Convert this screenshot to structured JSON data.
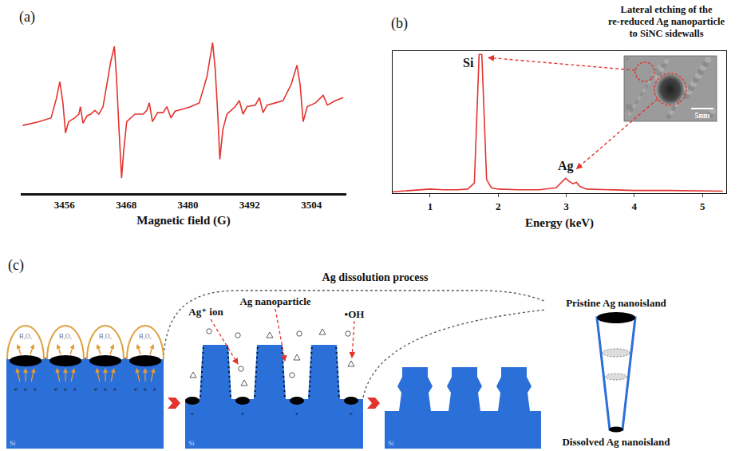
{
  "chart_data": [
    {
      "type": "line",
      "panel": "(a)",
      "color": "#e3342f",
      "grid": false,
      "tick_labels": "x",
      "x_label": "Magnetic field (G)",
      "x": [
        3447.9,
        3451.0,
        3453.4,
        3454.4,
        3455.1,
        3455.7,
        3456.2,
        3456.8,
        3458.0,
        3458.8,
        3459.1,
        3459.6,
        3460.4,
        3461.1,
        3461.9,
        3462.7,
        3463.5,
        3465.0,
        3465.7,
        3466.1,
        3466.6,
        3467.1,
        3467.5,
        3468.1,
        3469.7,
        3471.3,
        3472.0,
        3472.5,
        3473.1,
        3474.1,
        3475.2,
        3475.9,
        3476.7,
        3477.5,
        3479.1,
        3480.6,
        3482.2,
        3483.7,
        3484.8,
        3485.3,
        3485.8,
        3486.2,
        3486.8,
        3487.6,
        3489.2,
        3490.0,
        3490.7,
        3491.5,
        3493.1,
        3493.9,
        3494.6,
        3495.4,
        3497.0,
        3498.5,
        3500.1,
        3501.2,
        3501.8,
        3502.4,
        3503.2,
        3504.8,
        3506.3,
        3507.1,
        3508.7,
        3510.2
      ],
      "values": [
        90,
        95,
        100,
        125,
        148,
        120,
        80,
        95,
        100,
        105,
        115,
        93,
        103,
        105,
        110,
        105,
        115,
        175,
        195,
        155,
        85,
        20,
        55,
        95,
        105,
        105,
        110,
        120,
        95,
        107,
        107,
        115,
        100,
        109,
        112,
        115,
        120,
        155,
        200,
        165,
        105,
        45,
        85,
        105,
        115,
        123,
        105,
        115,
        117,
        127,
        107,
        117,
        120,
        123,
        145,
        170,
        145,
        95,
        115,
        120,
        130,
        117,
        123,
        127
      ],
      "xlim": [
        3447.5,
        3510.8
      ],
      "xticks": [
        3456,
        3468,
        3480,
        3492,
        3504
      ],
      "ylim": [
        0,
        210
      ]
    },
    {
      "type": "line",
      "panel": "(b)",
      "color": "#e3342f",
      "grid": false,
      "tick_labels": "x",
      "x_label": "Energy (keV)",
      "x": [
        0.45,
        0.8,
        1.0,
        1.2,
        1.4,
        1.55,
        1.65,
        1.7,
        1.72,
        1.76,
        1.78,
        1.83,
        1.9,
        2.0,
        2.3,
        2.6,
        2.85,
        2.95,
        2.99,
        3.05,
        3.1,
        3.15,
        3.2,
        3.3,
        3.6,
        4.0,
        4.5,
        5.0,
        5.3
      ],
      "values": [
        2,
        5,
        6,
        5,
        5,
        6,
        15,
        150,
        205,
        205,
        150,
        20,
        8,
        6,
        5,
        5,
        8,
        18,
        22,
        17,
        14,
        16,
        10,
        6,
        5,
        4,
        4,
        3,
        3
      ],
      "xlim": [
        0.45,
        5.35
      ],
      "xticks": [
        1,
        2,
        3,
        4,
        5
      ],
      "ylim": [
        0,
        210
      ],
      "annotations": [
        {
          "text": "Si",
          "x": 1.74,
          "y": 205
        },
        {
          "text": "Ag",
          "x": 2.99,
          "y": 22
        }
      ],
      "inset": {
        "title": [
          "Lateral etching of the",
          "re-reduced Ag nanoparticle",
          "to SiNC sidewalls"
        ],
        "scale_bar": "5nm"
      }
    }
  ],
  "diagram": {
    "panel": "(c)",
    "title": "Ag dissolution process",
    "oxidant": "H₂O₂",
    "electron": "e",
    "substrate": "Si",
    "labels": {
      "ion": "Ag⁺ ion",
      "particle": "Ag nanoparticle",
      "radical": "•OH"
    },
    "nanoisland": {
      "top": "Pristine Ag nanoisland",
      "bottom": "Dissolved Ag nanoisland"
    }
  }
}
